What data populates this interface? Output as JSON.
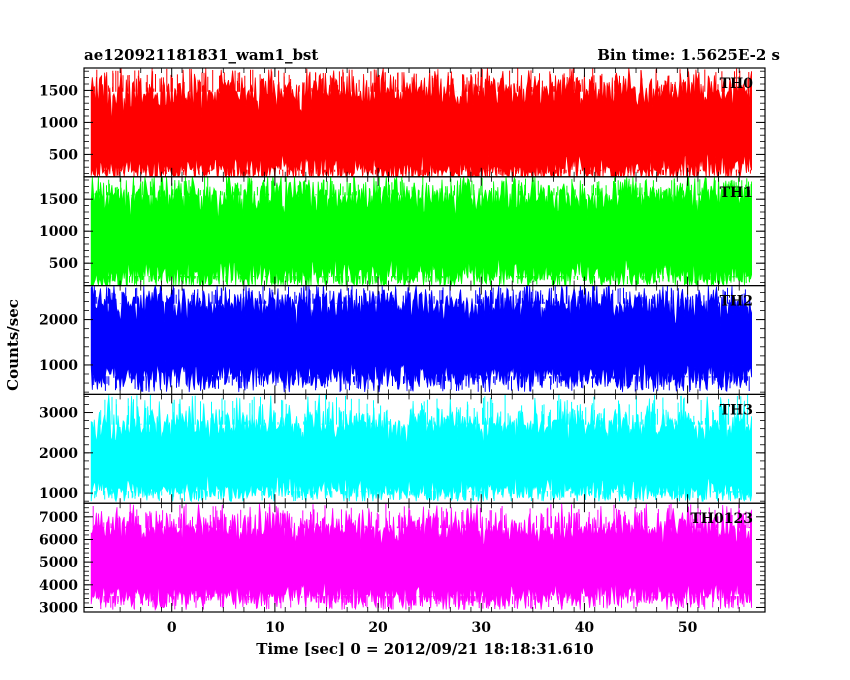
{
  "chart_data": {
    "type": "line",
    "title_left": "ae120921181831_wam1_bst",
    "title_right": "Bin time: 1.5625E-2 s",
    "xlabel": "Time [sec] 0 = 2012/09/21 18:18:31.610",
    "ylabel": "Counts/sec",
    "xlim": [
      -8.5,
      57.5
    ],
    "x_ticks": [
      0,
      10,
      20,
      30,
      40,
      50
    ],
    "x_tick_labels": [
      "0",
      "10",
      "20",
      "30",
      "40",
      "50"
    ],
    "x_data_range": [
      -7.8,
      56.2
    ],
    "bin_time": 0.015625,
    "grid": false,
    "panels": [
      {
        "name": "TH0",
        "color": "#ff0000",
        "ylim": [
          150,
          1850
        ],
        "y_ticks": [
          500,
          1000,
          1500
        ],
        "y_tick_labels": [
          "500",
          "1000",
          "1500"
        ],
        "envelope": {
          "lo": 260,
          "mean": 820,
          "hi": 1480,
          "min": 150,
          "max": 1850
        }
      },
      {
        "name": "TH1",
        "color": "#00ff00",
        "ylim": [
          150,
          1850
        ],
        "y_ticks": [
          500,
          1000,
          1500
        ],
        "y_tick_labels": [
          "500",
          "1000",
          "1500"
        ],
        "envelope": {
          "lo": 300,
          "mean": 930,
          "hi": 1560,
          "min": 160,
          "max": 1850
        }
      },
      {
        "name": "TH2",
        "color": "#0000ff",
        "ylim": [
          350,
          2750
        ],
        "y_ticks": [
          1000,
          2000
        ],
        "y_tick_labels": [
          "1000",
          "2000"
        ],
        "envelope": {
          "lo": 750,
          "mean": 1500,
          "hi": 2350,
          "min": 400,
          "max": 2750
        }
      },
      {
        "name": "TH3",
        "color": "#00ffff",
        "ylim": [
          750,
          3450
        ],
        "y_ticks": [
          1000,
          2000,
          3000
        ],
        "y_tick_labels": [
          "1000",
          "2000",
          "3000"
        ],
        "envelope": {
          "lo": 1050,
          "mean": 1850,
          "hi": 2700,
          "min": 800,
          "max": 3450
        }
      },
      {
        "name": "TH0123",
        "color": "#ff00ff",
        "ylim": [
          2800,
          7600
        ],
        "y_ticks": [
          3000,
          4000,
          5000,
          6000,
          7000
        ],
        "y_tick_labels": [
          "3000",
          "4000",
          "5000",
          "6000",
          "7000"
        ],
        "envelope": {
          "lo": 3500,
          "mean": 4900,
          "hi": 6500,
          "min": 2900,
          "max": 7600
        }
      }
    ]
  }
}
